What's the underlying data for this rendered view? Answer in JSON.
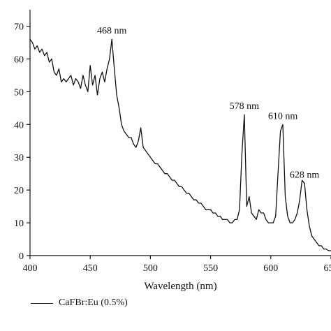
{
  "chart_data": {
    "type": "line",
    "xlabel": "Wavelength (nm)",
    "ylabel": "",
    "xlim": [
      400,
      650
    ],
    "ylim": [
      0,
      75
    ],
    "x_ticks": [
      400,
      450,
      500,
      550,
      600,
      650
    ],
    "x_tick_labels": [
      "400",
      "450",
      "500",
      "550",
      "600",
      "650"
    ],
    "y_ticks": [
      0,
      10,
      20,
      30,
      40,
      50,
      60,
      70
    ],
    "y_tick_labels": [
      "0",
      "10",
      "20",
      "30",
      "40",
      "50",
      "60",
      "70"
    ],
    "grid": false,
    "legend_position": "bottom-left",
    "series": [
      {
        "name": "CaFBr:Eu (0.5%)",
        "color": "#111111",
        "x": [
          400,
          402,
          404,
          406,
          408,
          410,
          412,
          414,
          416,
          418,
          420,
          422,
          424,
          426,
          428,
          430,
          432,
          434,
          436,
          438,
          440,
          442,
          444,
          446,
          448,
          450,
          452,
          454,
          456,
          458,
          460,
          462,
          464,
          466,
          468,
          470,
          472,
          474,
          476,
          478,
          480,
          482,
          484,
          486,
          488,
          490,
          492,
          494,
          496,
          498,
          500,
          502,
          504,
          506,
          508,
          510,
          512,
          514,
          516,
          518,
          520,
          522,
          524,
          526,
          528,
          530,
          532,
          534,
          536,
          538,
          540,
          542,
          544,
          546,
          548,
          550,
          552,
          554,
          556,
          558,
          560,
          562,
          564,
          566,
          568,
          570,
          572,
          574,
          576,
          578,
          580,
          582,
          584,
          586,
          588,
          590,
          592,
          594,
          596,
          598,
          600,
          602,
          604,
          606,
          608,
          610,
          612,
          614,
          616,
          618,
          620,
          622,
          624,
          626,
          628,
          630,
          632,
          634,
          636,
          638,
          640,
          642,
          644,
          646,
          648,
          650
        ],
        "y": [
          66,
          65,
          63,
          64,
          62,
          63,
          61,
          62,
          59,
          60,
          56,
          55,
          57,
          53,
          54,
          53,
          54,
          55,
          52,
          54,
          53,
          51,
          55,
          52,
          50,
          58,
          52,
          55,
          49,
          54,
          56,
          53,
          57,
          60,
          66,
          57,
          49,
          45,
          40,
          38,
          37,
          36,
          36,
          34,
          33,
          35,
          39,
          33,
          32,
          31,
          30,
          29,
          28,
          28,
          27,
          26,
          25,
          25,
          24,
          23,
          23,
          22,
          21,
          21,
          20,
          19,
          19,
          18,
          17,
          17,
          16,
          16,
          15,
          14,
          14,
          14,
          13,
          13,
          12,
          12,
          11,
          11,
          11,
          10,
          10,
          11,
          11,
          14,
          31,
          43,
          15,
          18,
          13,
          12,
          11,
          14,
          13,
          13,
          11,
          10,
          10,
          10,
          12,
          25,
          38,
          40,
          18,
          12,
          10,
          10,
          11,
          13,
          17,
          23,
          22,
          14,
          9,
          6,
          5,
          4,
          3,
          3,
          2,
          2,
          1.5,
          1.5
        ]
      }
    ],
    "annotations": [
      {
        "x": 468,
        "y": 66,
        "text": "468 nm"
      },
      {
        "x": 578,
        "y": 43,
        "text": "578 nm"
      },
      {
        "x": 610,
        "y": 40,
        "text": "610 nm"
      },
      {
        "x": 628,
        "y": 22,
        "text": "628 nm"
      }
    ]
  }
}
